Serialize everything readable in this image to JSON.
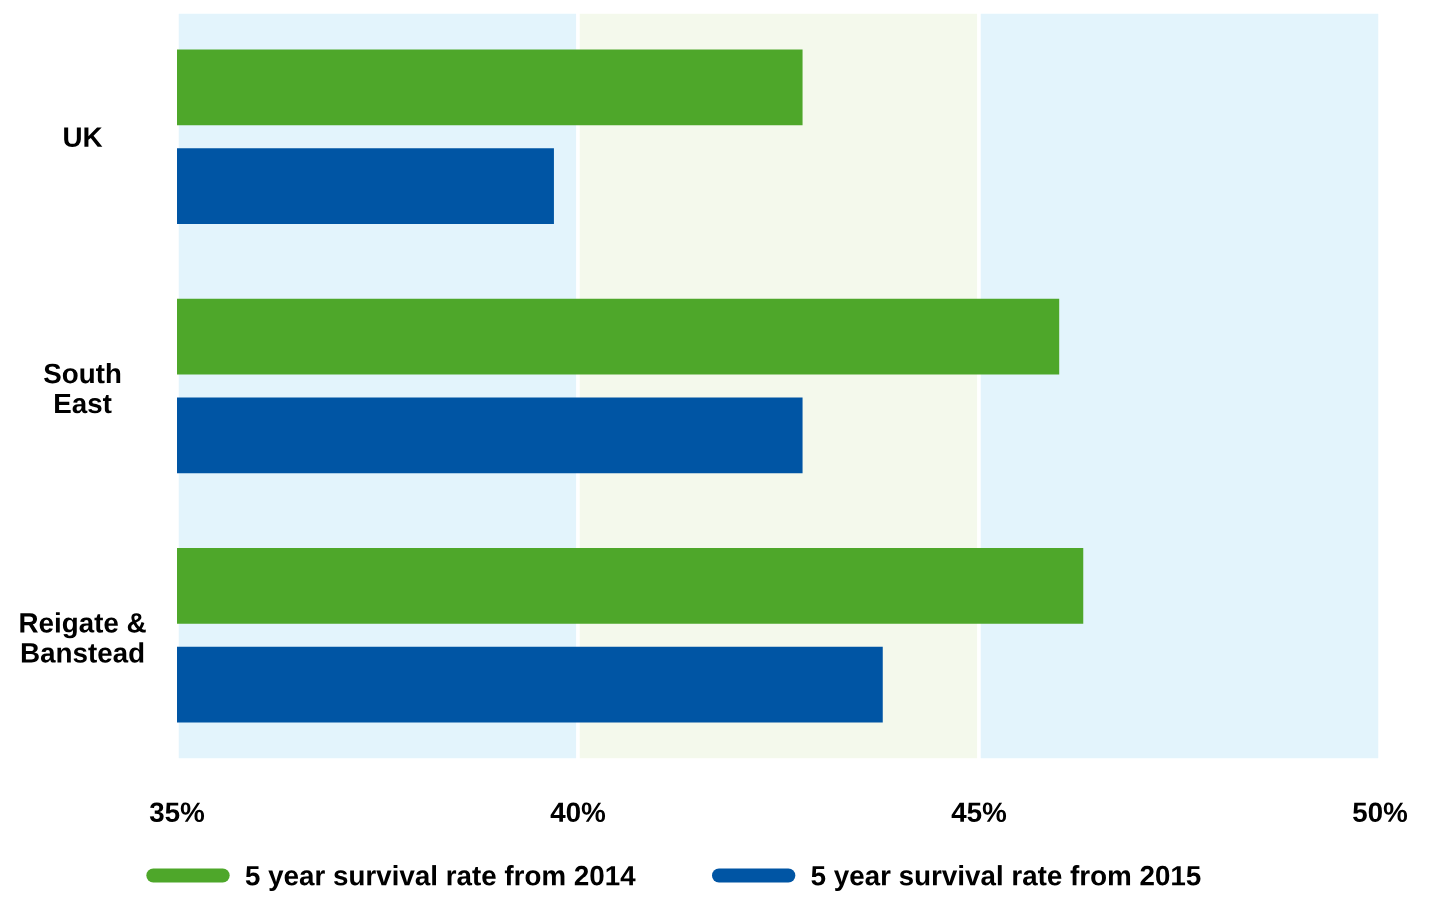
{
  "chart_data": {
    "type": "bar",
    "orientation": "horizontal",
    "categories": [
      "UK",
      "South\nEast",
      "Reigate &\nBanstead"
    ],
    "series": [
      {
        "name": "5 year survival rate from 2014",
        "color": "#4ea72a",
        "values": [
          42.8,
          46.0,
          46.3
        ]
      },
      {
        "name": "5 year survival rate from 2015",
        "color": "#0055a4",
        "values": [
          39.7,
          42.8,
          43.8
        ]
      }
    ],
    "xlim": [
      35,
      50
    ],
    "xticks": [
      {
        "value": 35,
        "label": "35%"
      },
      {
        "value": 40,
        "label": "40%"
      },
      {
        "value": 45,
        "label": "45%"
      },
      {
        "value": 50,
        "label": "50%"
      }
    ],
    "bands": [
      {
        "axis": "x",
        "from": 35,
        "to": 40,
        "color": "#e3f4fc"
      },
      {
        "axis": "x",
        "from": 40,
        "to": 45,
        "color": "#f4f9ec"
      },
      {
        "axis": "x",
        "from": 45,
        "to": 50,
        "color": "#e3f4fc"
      }
    ],
    "grid": false,
    "legend": "bottom"
  }
}
